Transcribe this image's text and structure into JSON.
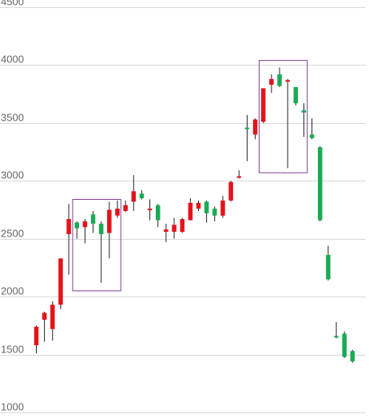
{
  "chart_data": {
    "type": "candlestick",
    "title": "",
    "xlabel": "",
    "ylabel": "",
    "ylim": [
      1000,
      4500
    ],
    "y_ticks": [
      1000,
      1500,
      2000,
      2500,
      3000,
      3500,
      4000,
      4500
    ],
    "y_tick_labels": [
      "1000",
      "1500",
      "2000",
      "2500",
      "3000",
      "3500",
      "4000",
      "4500"
    ],
    "grid": "horizontal",
    "colors": {
      "rising": "#e3131b",
      "falling": "#1aaa55",
      "highlight_box": "#7d3c98",
      "grid": "#d9d9d9"
    },
    "candles": [
      {
        "open": 1580,
        "close": 1740,
        "high": 1750,
        "low": 1510
      },
      {
        "open": 1800,
        "close": 1860,
        "high": 1870,
        "low": 1610
      },
      {
        "open": 1720,
        "close": 1930,
        "high": 1960,
        "low": 1620
      },
      {
        "open": 1930,
        "close": 2330,
        "high": 2330,
        "low": 1890
      },
      {
        "open": 2540,
        "close": 2670,
        "high": 2800,
        "low": 2190
      },
      {
        "open": 2640,
        "close": 2590,
        "high": 2650,
        "low": 2500
      },
      {
        "open": 2600,
        "close": 2650,
        "high": 2670,
        "low": 2460
      },
      {
        "open": 2710,
        "close": 2630,
        "high": 2740,
        "low": 2550
      },
      {
        "open": 2630,
        "close": 2540,
        "high": 2650,
        "low": 2120
      },
      {
        "open": 2550,
        "close": 2750,
        "high": 2820,
        "low": 2330
      },
      {
        "open": 2700,
        "close": 2760,
        "high": 2830,
        "low": 2680
      },
      {
        "open": 2740,
        "close": 2790,
        "high": 2830,
        "low": 2730
      },
      {
        "open": 2820,
        "close": 2910,
        "high": 3050,
        "low": 2740
      },
      {
        "open": 2890,
        "close": 2850,
        "high": 2920,
        "low": 2840
      },
      {
        "open": 2750,
        "close": 2760,
        "high": 2840,
        "low": 2660
      },
      {
        "open": 2790,
        "close": 2660,
        "high": 2800,
        "low": 2600
      },
      {
        "open": 2560,
        "close": 2580,
        "high": 2630,
        "low": 2470
      },
      {
        "open": 2560,
        "close": 2620,
        "high": 2680,
        "low": 2500
      },
      {
        "open": 2560,
        "close": 2670,
        "high": 2680,
        "low": 2550
      },
      {
        "open": 2660,
        "close": 2810,
        "high": 2850,
        "low": 2660
      },
      {
        "open": 2760,
        "close": 2810,
        "high": 2830,
        "low": 2740
      },
      {
        "open": 2820,
        "close": 2720,
        "high": 2830,
        "low": 2640
      },
      {
        "open": 2760,
        "close": 2700,
        "high": 2780,
        "low": 2650
      },
      {
        "open": 2700,
        "close": 2830,
        "high": 2870,
        "low": 2680
      },
      {
        "open": 2830,
        "close": 2990,
        "high": 3000,
        "low": 2820
      },
      {
        "open": 3030,
        "close": 3040,
        "high": 3090,
        "low": 3020
      },
      {
        "open": 3460,
        "close": 3450,
        "high": 3570,
        "low": 3170
      },
      {
        "open": 3400,
        "close": 3530,
        "high": 3540,
        "low": 3360
      },
      {
        "open": 3510,
        "close": 3800,
        "high": 3800,
        "low": 3500
      },
      {
        "open": 3830,
        "close": 3880,
        "high": 3920,
        "low": 3760
      },
      {
        "open": 3920,
        "close": 3820,
        "high": 3980,
        "low": 3810
      },
      {
        "open": 3860,
        "close": 3870,
        "high": 3880,
        "low": 3110
      },
      {
        "open": 3810,
        "close": 3670,
        "high": 3810,
        "low": 3650
      },
      {
        "open": 3610,
        "close": 3590,
        "high": 3670,
        "low": 3380
      },
      {
        "open": 3400,
        "close": 3370,
        "high": 3540,
        "low": 3360
      },
      {
        "open": 3290,
        "close": 2660,
        "high": 3300,
        "low": 2650
      },
      {
        "open": 2360,
        "close": 2150,
        "high": 2440,
        "low": 2140
      },
      {
        "open": 1660,
        "close": 1650,
        "high": 1780,
        "low": 1640
      },
      {
        "open": 1680,
        "close": 1480,
        "high": 1700,
        "low": 1470
      },
      {
        "open": 1530,
        "close": 1440,
        "high": 1540,
        "low": 1430
      }
    ],
    "annotations": [
      {
        "type": "box",
        "from_index": 5,
        "to_index": 10,
        "y_range": [
          2050,
          2840
        ]
      },
      {
        "type": "box",
        "from_index": 28,
        "to_index": 33,
        "y_range": [
          3070,
          4040
        ]
      }
    ]
  }
}
